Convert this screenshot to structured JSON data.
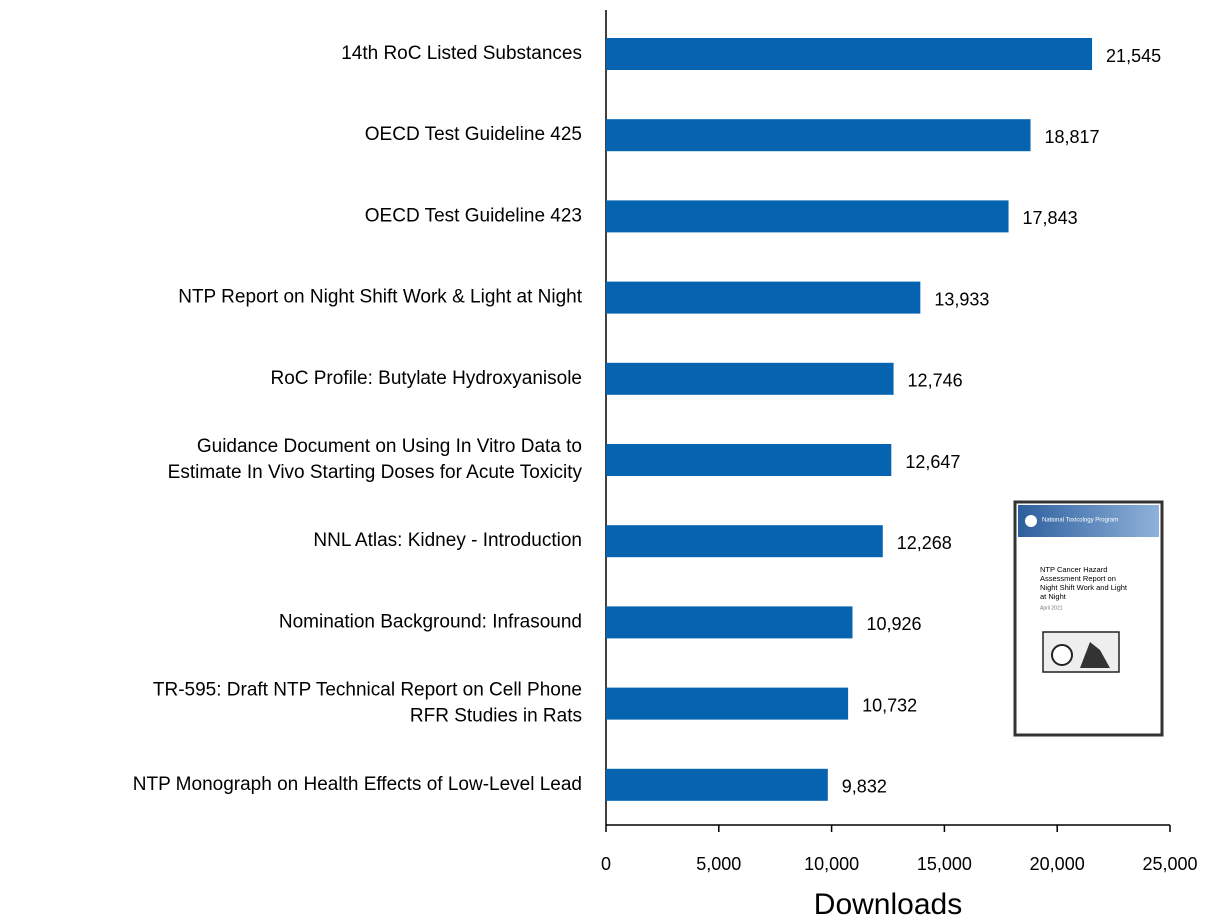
{
  "chart_data": {
    "type": "barh",
    "categories": [
      "14th RoC Listed Substances",
      "OECD Test Guideline 425",
      "OECD Test Guideline 423",
      "NTP Report on Night Shift Work & Light at Night",
      "RoC Profile: Butylate Hydroxyanisole",
      [
        "Guidance Document on Using In Vitro Data to",
        "Estimate In Vivo Starting Doses for Acute Toxicity"
      ],
      "NNL Atlas: Kidney - Introduction",
      "Nomination Background: Infrasound",
      [
        "TR-595: Draft NTP Technical Report on Cell Phone",
        "RFR Studies in Rats"
      ],
      "NTP Monograph on Health Effects of Low-Level Lead"
    ],
    "values": [
      21545,
      18817,
      17843,
      13933,
      12746,
      12647,
      12268,
      10926,
      10732,
      9832
    ],
    "value_labels": [
      "21,545",
      "18,817",
      "17,843",
      "13,933",
      "12,746",
      "12,647",
      "12,268",
      "10,926",
      "10,732",
      "9,832"
    ],
    "color": "#0563b0",
    "x_label": "Downloads",
    "xlim": [
      0,
      25000
    ],
    "xticks": [
      0,
      {
        "value": 5000,
        "label": "5,000"
      },
      {
        "value": 10000,
        "label": "10,000"
      },
      {
        "value": 15000,
        "label": "15,000"
      },
      {
        "value": 20000,
        "label": "20,000"
      },
      {
        "value": 25000,
        "label": "25,000"
      }
    ],
    "inset": {
      "header": "National Toxicology Program",
      "title": [
        "NTP Cancer Hazard",
        "Assessment Report on",
        "Night Shift Work and Light",
        "at Night"
      ],
      "date": "April 2021"
    }
  }
}
